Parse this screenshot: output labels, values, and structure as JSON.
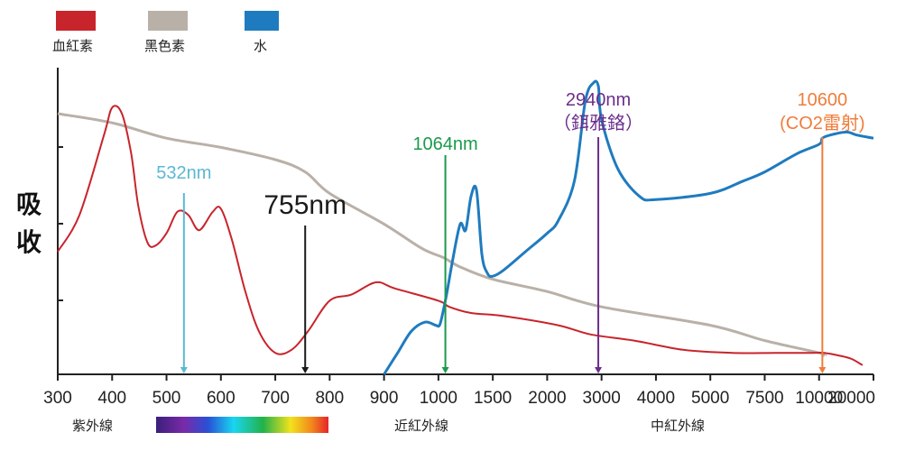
{
  "chart_data": {
    "type": "line",
    "ylabel": [
      "吸",
      "收"
    ],
    "x": {
      "tick_labels": [
        "300",
        "400",
        "500",
        "600",
        "700",
        "800",
        "900",
        "1000",
        "1500",
        "2000",
        "3000",
        "4000",
        "5000",
        "7500",
        "10000",
        "20000"
      ],
      "unit": "nm"
    },
    "series": [
      {
        "name": "血紅素",
        "color": "#c8242b",
        "points": [
          [
            300,
            0.4
          ],
          [
            340,
            0.52
          ],
          [
            385,
            0.78
          ],
          [
            400,
            0.87
          ],
          [
            418,
            0.85
          ],
          [
            435,
            0.72
          ],
          [
            448,
            0.55
          ],
          [
            465,
            0.43
          ],
          [
            480,
            0.42
          ],
          [
            500,
            0.46
          ],
          [
            520,
            0.53
          ],
          [
            540,
            0.52
          ],
          [
            560,
            0.47
          ],
          [
            585,
            0.53
          ],
          [
            600,
            0.54
          ],
          [
            620,
            0.44
          ],
          [
            645,
            0.27
          ],
          [
            670,
            0.14
          ],
          [
            700,
            0.07
          ],
          [
            730,
            0.08
          ],
          [
            760,
            0.14
          ],
          [
            800,
            0.24
          ],
          [
            840,
            0.26
          ],
          [
            885,
            0.3
          ],
          [
            920,
            0.28
          ],
          [
            1000,
            0.24
          ],
          [
            1100,
            0.22
          ],
          [
            1300,
            0.2
          ],
          [
            1600,
            0.19
          ],
          [
            2200,
            0.16
          ],
          [
            2800,
            0.13
          ],
          [
            3600,
            0.11
          ],
          [
            4500,
            0.08
          ],
          [
            6000,
            0.07
          ],
          [
            8000,
            0.07
          ],
          [
            9700,
            0.07
          ],
          [
            11000,
            0.07
          ],
          [
            14000,
            0.06
          ],
          [
            16000,
            0.05
          ],
          [
            18000,
            0.03
          ]
        ]
      },
      {
        "name": "黑色素",
        "color": "#b9b0a7",
        "points": [
          [
            300,
            0.85
          ],
          [
            400,
            0.82
          ],
          [
            500,
            0.77
          ],
          [
            600,
            0.74
          ],
          [
            700,
            0.7
          ],
          [
            755,
            0.66
          ],
          [
            800,
            0.59
          ],
          [
            900,
            0.49
          ],
          [
            970,
            0.41
          ],
          [
            1050,
            0.38
          ],
          [
            1200,
            0.35
          ],
          [
            1500,
            0.31
          ],
          [
            2000,
            0.27
          ],
          [
            3000,
            0.22
          ],
          [
            5000,
            0.16
          ],
          [
            7500,
            0.11
          ],
          [
            10000,
            0.07
          ],
          [
            11000,
            0.06
          ]
        ]
      },
      {
        "name": "水",
        "color": "#1f7bbf",
        "points": [
          [
            900,
            0.0
          ],
          [
            925,
            0.07
          ],
          [
            950,
            0.14
          ],
          [
            975,
            0.17
          ],
          [
            995,
            0.16
          ],
          [
            1010,
            0.16
          ],
          [
            1040,
            0.2
          ],
          [
            1080,
            0.27
          ],
          [
            1130,
            0.37
          ],
          [
            1200,
            0.49
          ],
          [
            1250,
            0.47
          ],
          [
            1300,
            0.58
          ],
          [
            1350,
            0.6
          ],
          [
            1400,
            0.39
          ],
          [
            1450,
            0.33
          ],
          [
            1500,
            0.32
          ],
          [
            1600,
            0.34
          ],
          [
            1800,
            0.4
          ],
          [
            2000,
            0.46
          ],
          [
            2200,
            0.5
          ],
          [
            2500,
            0.63
          ],
          [
            2700,
            0.89
          ],
          [
            2850,
            0.95
          ],
          [
            2940,
            0.94
          ],
          [
            3000,
            0.83
          ],
          [
            3300,
            0.67
          ],
          [
            3700,
            0.58
          ],
          [
            4000,
            0.57
          ],
          [
            5000,
            0.59
          ],
          [
            6500,
            0.63
          ],
          [
            7500,
            0.66
          ],
          [
            9000,
            0.72
          ],
          [
            10000,
            0.75
          ],
          [
            10600,
            0.77
          ],
          [
            12000,
            0.78
          ],
          [
            15000,
            0.79
          ],
          [
            17000,
            0.78
          ],
          [
            20000,
            0.77
          ]
        ]
      }
    ],
    "annotations": [
      {
        "x": 532,
        "lines": [
          "532nm"
        ],
        "color": "#5bb8d3",
        "arrow_to": "axis"
      },
      {
        "x": 755,
        "lines": [
          "755nm"
        ],
        "color": "#1a1a1a",
        "arrow_to": "axis"
      },
      {
        "x": 1064,
        "lines": [
          "1064nm"
        ],
        "color": "#1a9a4a",
        "arrow_to": "axis"
      },
      {
        "x": 2940,
        "lines": [
          "2940nm",
          "（鉺雅鉻）"
        ],
        "color": "#6b2d8b",
        "arrow_to": "axis"
      },
      {
        "x": 10600,
        "lines": [
          "10600",
          "(CO2雷射)"
        ],
        "color": "#f07c3a",
        "arrow_to": "axis"
      }
    ],
    "regions": [
      "紫外線",
      "近紅外線",
      "中紅外線"
    ],
    "legend_position": "top-left"
  }
}
